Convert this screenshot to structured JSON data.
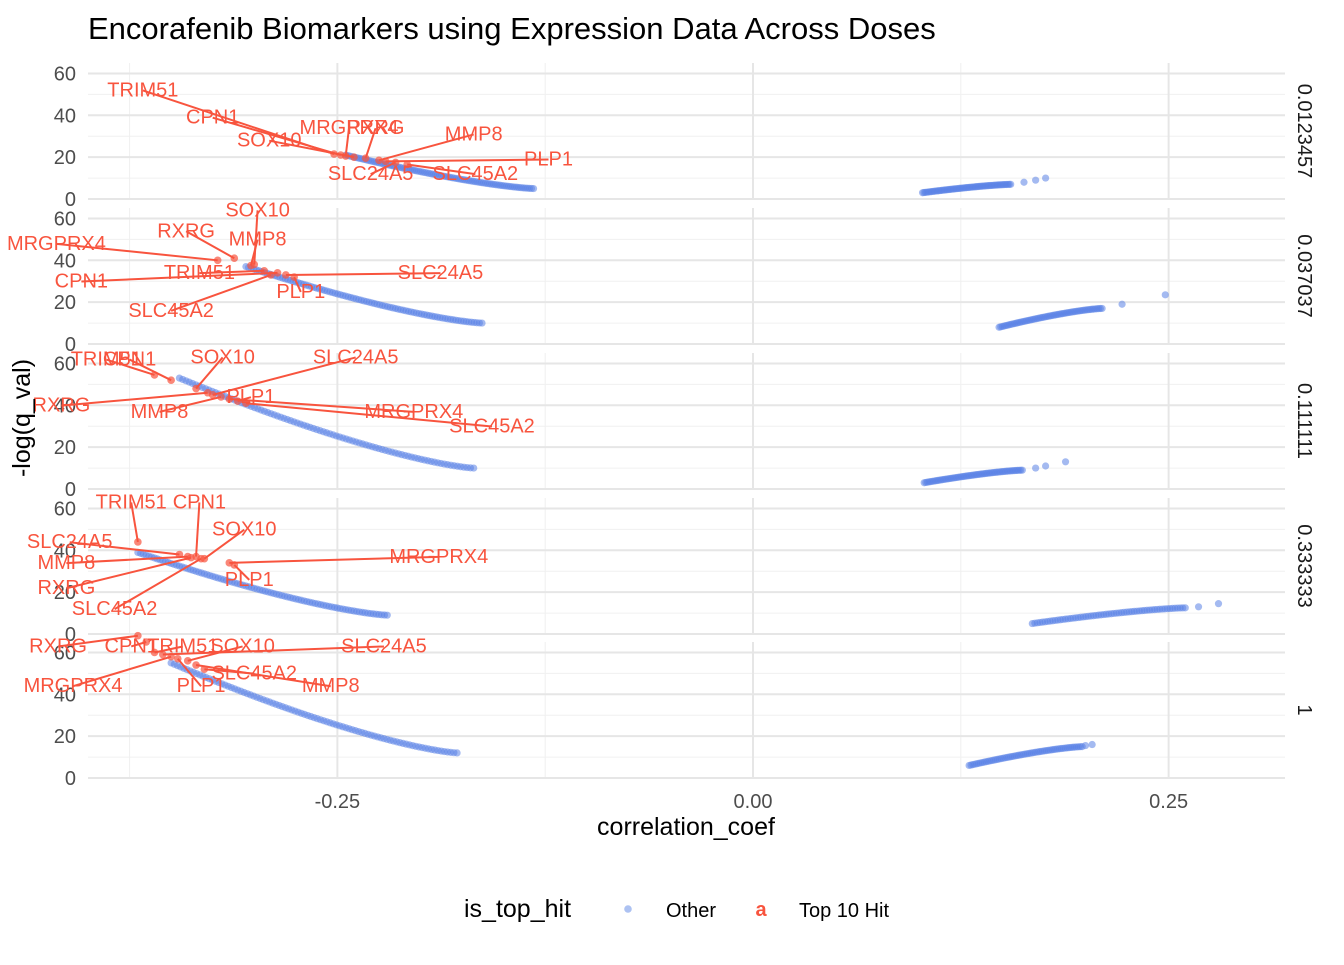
{
  "chart_data": {
    "type": "scatter",
    "title": "Encorafenib Biomarkers using Expression Data Across Doses",
    "xlabel": "correlation_coef",
    "ylabel": "-log(q_val)",
    "xlim": [
      -0.4,
      0.32
    ],
    "ylim": [
      0,
      65
    ],
    "x_ticks": [
      -0.25,
      0.0,
      0.25
    ],
    "x_tick_labels": [
      "-0.25",
      "0.00",
      "0.25"
    ],
    "y_ticks": [
      0,
      20,
      40,
      60
    ],
    "y_tick_labels": [
      "0",
      "20",
      "40",
      "60"
    ],
    "grid": true,
    "facet_by": "dose",
    "legend": {
      "position": "bottom",
      "title": "is_top_hit",
      "entries": [
        {
          "label": "Other",
          "color": "#6a8fe8",
          "key_symbol": "point"
        },
        {
          "label": "Top 10 Hit",
          "color": "#f8543e",
          "key_symbol": "a"
        }
      ]
    },
    "colors": {
      "other": "#5a82e6",
      "top_hit": "#f8543e"
    },
    "panels": [
      {
        "dose": "0.0123457",
        "other_neg": {
          "x_start": -0.245,
          "y_start": 21,
          "x_end": -0.132,
          "y_end": 5
        },
        "other_pos": {
          "x_start": 0.102,
          "y_start": 3,
          "x_end": 0.155,
          "y_end": 7,
          "outliers": [
            [
              0.163,
              8
            ],
            [
              0.17,
              9
            ],
            [
              0.176,
              10
            ]
          ]
        },
        "top_hits": [
          {
            "gene": "TRIM51",
            "x": -0.252,
            "y": 21.5,
            "label_x": -0.367,
            "label_y": 49
          },
          {
            "gene": "CPN1",
            "x": -0.248,
            "y": 21,
            "label_x": -0.325,
            "label_y": 36
          },
          {
            "gene": "MRGPRX4",
            "x": -0.245,
            "y": 20.5,
            "label_x": -0.243,
            "label_y": 31
          },
          {
            "gene": "SOX10",
            "x": -0.24,
            "y": 20,
            "label_x": -0.291,
            "label_y": 25
          },
          {
            "gene": "RXRG",
            "x": -0.233,
            "y": 19.5,
            "label_x": -0.227,
            "label_y": 31
          },
          {
            "gene": "MMP8",
            "x": -0.225,
            "y": 18.5,
            "label_x": -0.168,
            "label_y": 28
          },
          {
            "gene": "PLP1",
            "x": -0.221,
            "y": 18,
            "label_x": -0.123,
            "label_y": 16
          },
          {
            "gene": "SLC24A5",
            "x": -0.215,
            "y": 17.5,
            "label_x": -0.23,
            "label_y": 9
          },
          {
            "gene": "SLC45A2",
            "x": -0.208,
            "y": 16.5,
            "label_x": -0.167,
            "label_y": 9
          }
        ]
      },
      {
        "dose": "0.037037",
        "other_neg": {
          "x_start": -0.305,
          "y_start": 37,
          "x_end": -0.163,
          "y_end": 10
        },
        "other_pos": {
          "x_start": 0.148,
          "y_start": 8,
          "x_end": 0.21,
          "y_end": 17,
          "outliers": [
            [
              0.222,
              19
            ],
            [
              0.248,
              23.5
            ]
          ]
        },
        "top_hits": [
          {
            "gene": "SOX10",
            "x": -0.3,
            "y": 38,
            "label_x": -0.298,
            "label_y": 61
          },
          {
            "gene": "RXRG",
            "x": -0.312,
            "y": 41,
            "label_x": -0.341,
            "label_y": 51
          },
          {
            "gene": "MRGPRX4",
            "x": -0.322,
            "y": 40,
            "label_x": -0.419,
            "label_y": 45
          },
          {
            "gene": "MMP8",
            "x": -0.302,
            "y": 37.5,
            "label_x": -0.298,
            "label_y": 47
          },
          {
            "gene": "TRIM51",
            "x": -0.294,
            "y": 35,
            "label_x": -0.333,
            "label_y": 31
          },
          {
            "gene": "CPN1",
            "x": -0.286,
            "y": 34,
            "label_x": -0.404,
            "label_y": 27
          },
          {
            "gene": "SLC24A5",
            "x": -0.281,
            "y": 33,
            "label_x": -0.188,
            "label_y": 31
          },
          {
            "gene": "PLP1",
            "x": -0.276,
            "y": 32,
            "label_x": -0.272,
            "label_y": 22
          },
          {
            "gene": "SLC45A2",
            "x": -0.29,
            "y": 33,
            "label_x": -0.35,
            "label_y": 13
          }
        ]
      },
      {
        "dose": "0.111111",
        "other_neg": {
          "x_start": -0.345,
          "y_start": 53,
          "x_end": -0.168,
          "y_end": 10
        },
        "other_pos": {
          "x_start": 0.103,
          "y_start": 3,
          "x_end": 0.162,
          "y_end": 9,
          "outliers": [
            [
              0.17,
              10
            ],
            [
              0.176,
              11
            ],
            [
              0.188,
              13
            ]
          ]
        },
        "top_hits": [
          {
            "gene": "TRIM51",
            "x": -0.36,
            "y": 54.5,
            "label_x": -0.389,
            "label_y": 59
          },
          {
            "gene": "CPN1",
            "x": -0.35,
            "y": 52,
            "label_x": -0.375,
            "label_y": 59
          },
          {
            "gene": "SOX10",
            "x": -0.335,
            "y": 48,
            "label_x": -0.319,
            "label_y": 60
          },
          {
            "gene": "RXRG",
            "x": -0.328,
            "y": 46,
            "label_x": -0.416,
            "label_y": 37
          },
          {
            "gene": "MMP8",
            "x": -0.32,
            "y": 44,
            "label_x": -0.357,
            "label_y": 34
          },
          {
            "gene": "PLP1",
            "x": -0.31,
            "y": 42,
            "label_x": -0.302,
            "label_y": 41
          },
          {
            "gene": "SLC24A5",
            "x": -0.325,
            "y": 45,
            "label_x": -0.239,
            "label_y": 60
          },
          {
            "gene": "MRGPRX4",
            "x": -0.315,
            "y": 43,
            "label_x": -0.204,
            "label_y": 34
          },
          {
            "gene": "SLC45A2",
            "x": -0.305,
            "y": 41,
            "label_x": -0.157,
            "label_y": 27
          }
        ]
      },
      {
        "dose": "0.333333",
        "other_neg": {
          "x_start": -0.37,
          "y_start": 39,
          "x_end": -0.22,
          "y_end": 9
        },
        "other_pos": {
          "x_start": 0.168,
          "y_start": 5,
          "x_end": 0.26,
          "y_end": 12.5,
          "outliers": [
            [
              0.268,
              13
            ],
            [
              0.28,
              14.5
            ]
          ]
        },
        "top_hits": [
          {
            "gene": "TRIM51",
            "x": -0.37,
            "y": 44,
            "label_x": -0.374,
            "label_y": 60
          },
          {
            "gene": "CPN1",
            "x": -0.335,
            "y": 37,
            "label_x": -0.333,
            "label_y": 60
          },
          {
            "gene": "SOX10",
            "x": -0.33,
            "y": 36,
            "label_x": -0.306,
            "label_y": 47
          },
          {
            "gene": "SLC24A5",
            "x": -0.345,
            "y": 38,
            "label_x": -0.411,
            "label_y": 41
          },
          {
            "gene": "MMP8",
            "x": -0.34,
            "y": 37,
            "label_x": -0.413,
            "label_y": 31
          },
          {
            "gene": "RXRG",
            "x": -0.338,
            "y": 36.5,
            "label_x": -0.413,
            "label_y": 19
          },
          {
            "gene": "MRGPRX4",
            "x": -0.315,
            "y": 34,
            "label_x": -0.189,
            "label_y": 34
          },
          {
            "gene": "PLP1",
            "x": -0.312,
            "y": 33,
            "label_x": -0.303,
            "label_y": 23
          },
          {
            "gene": "SLC45A2",
            "x": -0.332,
            "y": 36,
            "label_x": -0.384,
            "label_y": 9
          }
        ]
      },
      {
        "dose": "1",
        "other_neg": {
          "x_start": -0.35,
          "y_start": 55,
          "x_end": -0.178,
          "y_end": 12
        },
        "other_pos": {
          "x_start": 0.13,
          "y_start": 6,
          "x_end": 0.198,
          "y_end": 15,
          "outliers": [
            [
              0.2,
              15.5
            ],
            [
              0.204,
              16
            ]
          ]
        },
        "top_hits": [
          {
            "gene": "RXRG",
            "x": -0.37,
            "y": 68,
            "label_x": -0.418,
            "label_y": 60
          },
          {
            "gene": "CPN1",
            "x": -0.365,
            "y": 65,
            "label_x": -0.374,
            "label_y": 60
          },
          {
            "gene": "TRIM51",
            "x": -0.36,
            "y": 60,
            "label_x": -0.343,
            "label_y": 60
          },
          {
            "gene": "MRGPRX4",
            "x": -0.35,
            "y": 58,
            "label_x": -0.409,
            "label_y": 41
          },
          {
            "gene": "PLP1",
            "x": -0.346,
            "y": 57,
            "label_x": -0.332,
            "label_y": 41
          },
          {
            "gene": "SOX10",
            "x": -0.34,
            "y": 56,
            "label_x": -0.307,
            "label_y": 60
          },
          {
            "gene": "SLC24A5",
            "x": -0.355,
            "y": 59,
            "label_x": -0.222,
            "label_y": 60
          },
          {
            "gene": "SLC45A2",
            "x": -0.33,
            "y": 52,
            "label_x": -0.3,
            "label_y": 47
          },
          {
            "gene": "MMP8",
            "x": -0.335,
            "y": 54,
            "label_x": -0.254,
            "label_y": 41
          }
        ]
      }
    ]
  }
}
